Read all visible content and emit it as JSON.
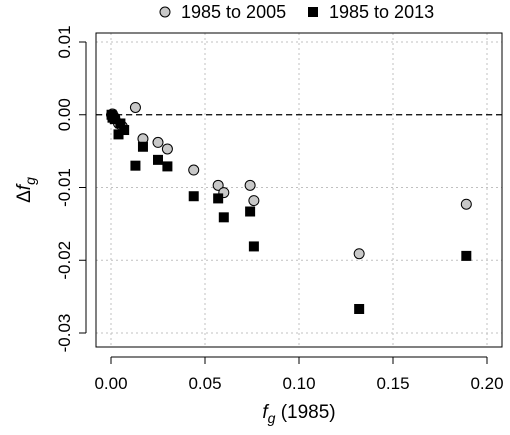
{
  "chart_data": {
    "type": "scatter",
    "title": "",
    "xlabel": {
      "symbol": "f",
      "subscript": "g",
      "suffix": " (1985)"
    },
    "ylabel": {
      "prefix": "Δ",
      "symbol": "f",
      "subscript": "g"
    },
    "xlim": [
      0.0,
      0.2
    ],
    "ylim": [
      -0.03,
      0.01
    ],
    "xticks": [
      "0.00",
      "0.05",
      "0.10",
      "0.15",
      "0.20"
    ],
    "yticks": [
      "0.01",
      "0.00",
      "-0.01",
      "-0.02",
      "-0.03"
    ],
    "grid": true,
    "reference_line": {
      "y": 0.0,
      "style": "dashed"
    },
    "legend_position": "top",
    "series": [
      {
        "name": "1985 to 2005",
        "marker": "circle",
        "color": "#c8c8c8",
        "points": [
          {
            "x": 0.0003,
            "y": 0.0
          },
          {
            "x": 0.0008,
            "y": 0.0001
          },
          {
            "x": 0.002,
            "y": -0.0004
          },
          {
            "x": 0.004,
            "y": -0.0012
          },
          {
            "x": 0.006,
            "y": -0.0016
          },
          {
            "x": 0.013,
            "y": 0.001
          },
          {
            "x": 0.017,
            "y": -0.0033
          },
          {
            "x": 0.025,
            "y": -0.0038
          },
          {
            "x": 0.03,
            "y": -0.0047
          },
          {
            "x": 0.044,
            "y": -0.0076
          },
          {
            "x": 0.057,
            "y": -0.0097
          },
          {
            "x": 0.06,
            "y": -0.0107
          },
          {
            "x": 0.074,
            "y": -0.0097
          },
          {
            "x": 0.076,
            "y": -0.0118
          },
          {
            "x": 0.132,
            "y": -0.0191
          },
          {
            "x": 0.189,
            "y": -0.0123
          }
        ]
      },
      {
        "name": "1985 to 2013",
        "marker": "square",
        "color": "#000000",
        "points": [
          {
            "x": 0.0003,
            "y": 0.0
          },
          {
            "x": 0.0008,
            "y": -0.0004
          },
          {
            "x": 0.002,
            "y": -0.0006
          },
          {
            "x": 0.004,
            "y": -0.0027
          },
          {
            "x": 0.005,
            "y": -0.0012
          },
          {
            "x": 0.007,
            "y": -0.0021
          },
          {
            "x": 0.013,
            "y": -0.007
          },
          {
            "x": 0.017,
            "y": -0.0044
          },
          {
            "x": 0.025,
            "y": -0.0062
          },
          {
            "x": 0.03,
            "y": -0.0071
          },
          {
            "x": 0.044,
            "y": -0.0112
          },
          {
            "x": 0.057,
            "y": -0.0115
          },
          {
            "x": 0.06,
            "y": -0.0141
          },
          {
            "x": 0.074,
            "y": -0.0133
          },
          {
            "x": 0.076,
            "y": -0.0181
          },
          {
            "x": 0.132,
            "y": -0.0267
          },
          {
            "x": 0.189,
            "y": -0.0194
          }
        ]
      }
    ]
  }
}
